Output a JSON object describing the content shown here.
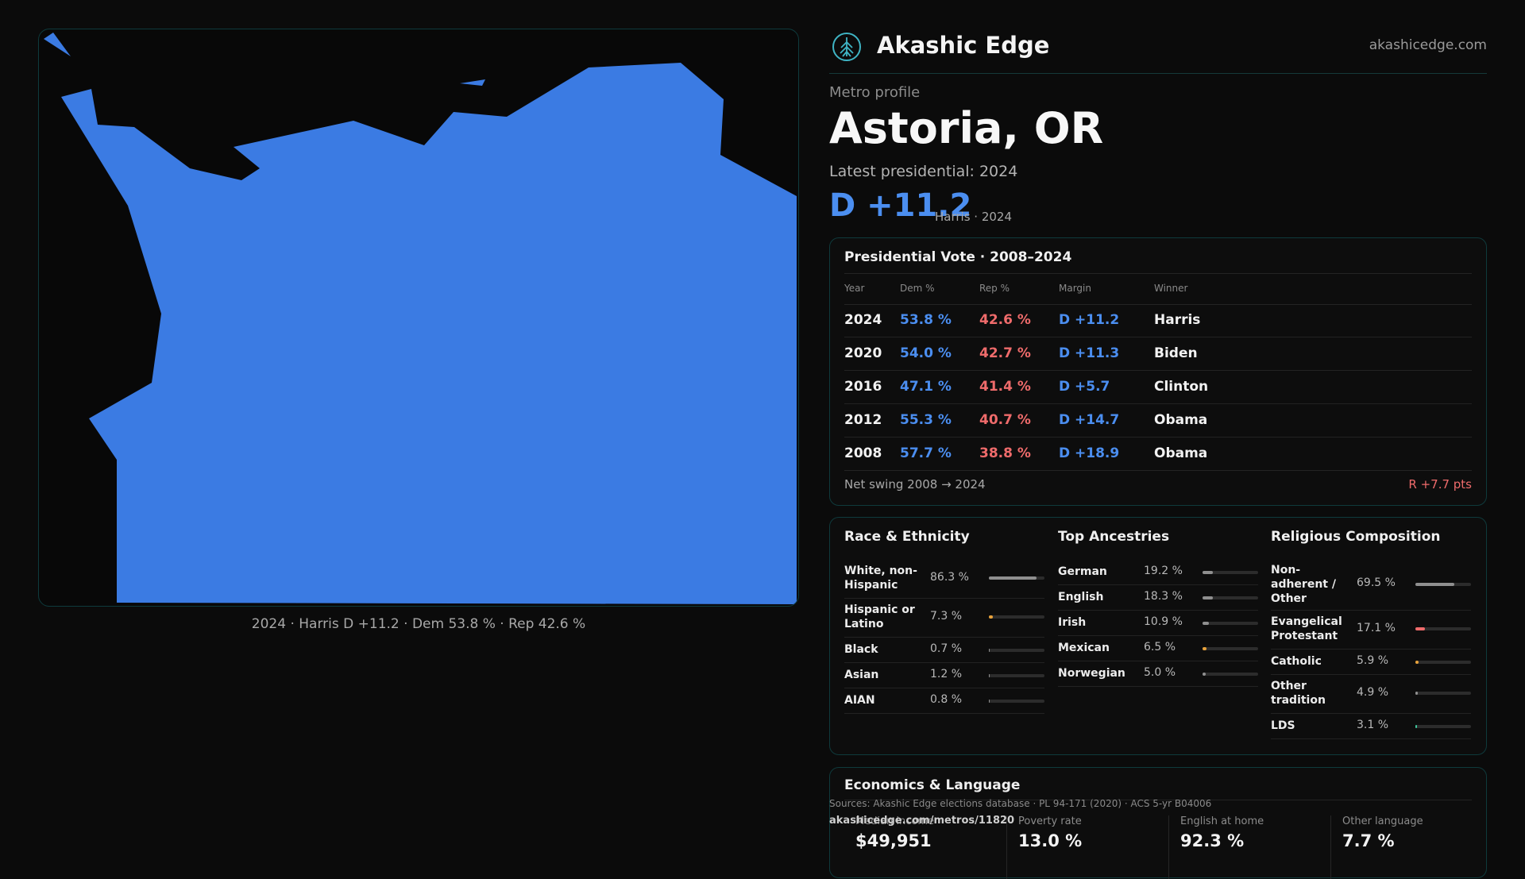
{
  "colors": {
    "dem": "#4b8ef0",
    "rep": "#ef6b6b",
    "map_fill": "#3b7be3",
    "bar_neutral": "#8f8f8f",
    "bar_orange": "#e8a23b",
    "bar_green": "#3fc9a0",
    "bar_red": "#ef6b6b"
  },
  "map": {
    "caption": "2024 · Harris D +11.2 · Dem 53.8 % · Rep 42.6 %"
  },
  "header": {
    "brand": "Akashic Edge",
    "site": "akashicedge.com",
    "logo_icon": "tree-icon"
  },
  "profile": {
    "kicker": "Metro profile",
    "place": "Astoria, OR",
    "latest_label": "Latest presidential: 2024",
    "margin": "D +11.2",
    "margin_detail": "Harris · 2024"
  },
  "vote_table": {
    "title": "Presidential Vote · 2008–2024",
    "columns": [
      "Year",
      "Dem %",
      "Rep %",
      "Margin",
      "Winner"
    ],
    "rows": [
      {
        "year": "2024",
        "dem": "53.8 %",
        "rep": "42.6 %",
        "margin": "D +11.2",
        "winner": "Harris"
      },
      {
        "year": "2020",
        "dem": "54.0 %",
        "rep": "42.7 %",
        "margin": "D +11.3",
        "winner": "Biden"
      },
      {
        "year": "2016",
        "dem": "47.1 %",
        "rep": "41.4 %",
        "margin": "D +5.7",
        "winner": "Clinton"
      },
      {
        "year": "2012",
        "dem": "55.3 %",
        "rep": "40.7 %",
        "margin": "D +14.7",
        "winner": "Obama"
      },
      {
        "year": "2008",
        "dem": "57.7 %",
        "rep": "38.8 %",
        "margin": "D +18.9",
        "winner": "Obama"
      }
    ],
    "swing_label": "Net swing 2008 → 2024",
    "swing_value": "R +7.7 pts"
  },
  "demographics": {
    "race": {
      "title": "Race & Ethnicity",
      "rows": [
        {
          "label": "White, non-Hispanic",
          "value": "86.3 %",
          "pct": 86.3,
          "color": "#8f8f8f"
        },
        {
          "label": "Hispanic or Latino",
          "value": "7.3 %",
          "pct": 7.3,
          "color": "#e8a23b"
        },
        {
          "label": "Black",
          "value": "0.7 %",
          "pct": 0.7,
          "color": "#8f8f8f"
        },
        {
          "label": "Asian",
          "value": "1.2 %",
          "pct": 1.2,
          "color": "#8f8f8f"
        },
        {
          "label": "AIAN",
          "value": "0.8 %",
          "pct": 0.8,
          "color": "#8f8f8f"
        }
      ]
    },
    "ancestry": {
      "title": "Top Ancestries",
      "rows": [
        {
          "label": "German",
          "value": "19.2 %",
          "pct": 19.2,
          "color": "#8f8f8f"
        },
        {
          "label": "English",
          "value": "18.3 %",
          "pct": 18.3,
          "color": "#8f8f8f"
        },
        {
          "label": "Irish",
          "value": "10.9 %",
          "pct": 10.9,
          "color": "#8f8f8f"
        },
        {
          "label": "Mexican",
          "value": "6.5 %",
          "pct": 6.5,
          "color": "#e8a23b"
        },
        {
          "label": "Norwegian",
          "value": "5.0 %",
          "pct": 5.0,
          "color": "#8f8f8f"
        }
      ]
    },
    "religion": {
      "title": "Religious Composition",
      "rows": [
        {
          "label": "Non-adherent / Other",
          "value": "69.5 %",
          "pct": 69.5,
          "color": "#8f8f8f"
        },
        {
          "label": "Evangelical Protestant",
          "value": "17.1 %",
          "pct": 17.1,
          "color": "#ef6b6b"
        },
        {
          "label": "Catholic",
          "value": "5.9 %",
          "pct": 5.9,
          "color": "#e8a23b"
        },
        {
          "label": "Other tradition",
          "value": "4.9 %",
          "pct": 4.9,
          "color": "#8f8f8f"
        },
        {
          "label": "LDS",
          "value": "3.1 %",
          "pct": 3.1,
          "color": "#3fc9a0"
        }
      ]
    }
  },
  "economics": {
    "title": "Economics & Language",
    "stats": [
      {
        "label": "Median income",
        "value": "$49,951"
      },
      {
        "label": "Poverty rate",
        "value": "13.0 %"
      },
      {
        "label": "English at home",
        "value": "92.3 %"
      },
      {
        "label": "Other language",
        "value": "7.7 %"
      }
    ]
  },
  "footer": {
    "sources": "Sources: Akashic Edge elections database · PL 94-171 (2020) · ACS 5-yr B04006",
    "url": "akashicedge.com/metros/11820"
  }
}
